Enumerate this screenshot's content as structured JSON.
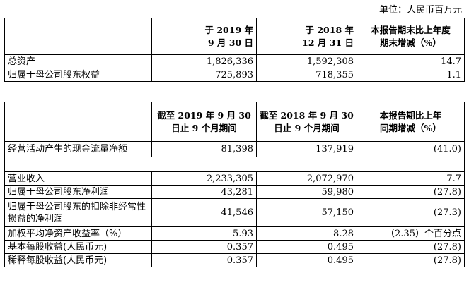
{
  "unit": "单位：人民币百万元",
  "table1": {
    "headers": [
      [
        "于 2019 年",
        "9 月 30 日"
      ],
      [
        "于 2018 年",
        "12 月 31 日"
      ],
      [
        "本报告期末比上年度",
        "期末增减（%）"
      ]
    ],
    "rows": [
      {
        "label": "总资产",
        "values": [
          "1,826,336",
          "1,592,308",
          "14.7"
        ]
      },
      {
        "label": "归属于母公司股东权益",
        "values": [
          "725,893",
          "718,355",
          "1.1"
        ]
      }
    ]
  },
  "table2": {
    "headers": [
      [
        "截至 2019 年 9 月 30",
        "日止 9 个月期间"
      ],
      [
        "截至 2018 年 9 月 30",
        "日止 9 个月期间"
      ],
      [
        "本报告期比上年",
        "同期增减（%）"
      ]
    ],
    "cashflow": {
      "label": "经营活动产生的现金流量净额",
      "values": [
        "81,398",
        "137,919",
        "(41.0)"
      ]
    },
    "rows": [
      {
        "label": "营业收入",
        "values": [
          "2,233,305",
          "2,072,970",
          "7.7"
        ]
      },
      {
        "label": "归属于母公司股东净利润",
        "values": [
          "43,281",
          "59,980",
          "(27.8)"
        ]
      },
      {
        "label": "归属于母公司股东的扣除非经常性损益的净利润",
        "values": [
          "41,546",
          "57,150",
          "(27.3)"
        ]
      },
      {
        "label": "加权平均净资产收益率（%）",
        "values": [
          "5.93",
          "8.28",
          "（2.35）个百分点"
        ]
      },
      {
        "label": "基本每股收益(人民币元)",
        "values": [
          "0.357",
          "0.495",
          "(27.8)"
        ]
      },
      {
        "label": "稀释每股收益(人民币元)",
        "values": [
          "0.357",
          "0.495",
          "(27.8)"
        ]
      }
    ]
  }
}
